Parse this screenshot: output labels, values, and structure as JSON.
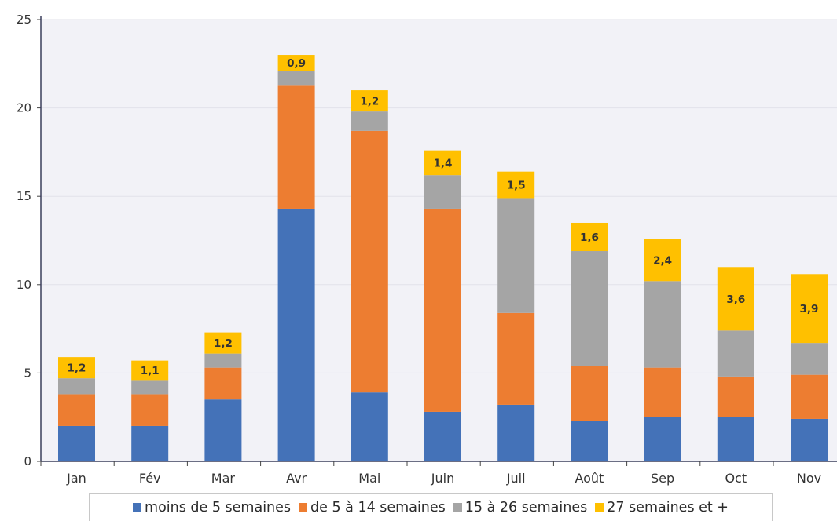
{
  "chart_data": {
    "type": "bar",
    "stacked": true,
    "categories": [
      "Jan",
      "Fév",
      "Mar",
      "Avr",
      "Mai",
      "Juin",
      "Juil",
      "Août",
      "Sep",
      "Oct",
      "Nov"
    ],
    "series": [
      {
        "name": "moins de 5 semaines",
        "color": "#4472b8",
        "values": [
          2.0,
          2.0,
          3.5,
          14.3,
          3.9,
          2.8,
          3.2,
          2.3,
          2.5,
          2.5,
          2.4
        ]
      },
      {
        "name": "de 5 à 14 semaines",
        "color": "#ed7d31",
        "values": [
          1.8,
          1.8,
          1.8,
          7.0,
          14.8,
          11.5,
          5.2,
          3.1,
          2.8,
          2.3,
          2.5
        ]
      },
      {
        "name": "15 à 26 semaines",
        "color": "#a5a5a5",
        "values": [
          0.9,
          0.8,
          0.8,
          0.8,
          1.1,
          1.9,
          6.5,
          6.5,
          4.9,
          2.6,
          1.8
        ]
      },
      {
        "name": "27 semaines et +",
        "color": "#ffc000",
        "values": [
          1.2,
          1.1,
          1.2,
          0.9,
          1.2,
          1.4,
          1.5,
          1.6,
          2.4,
          3.6,
          3.9
        ]
      }
    ],
    "data_labels": [
      "1,2",
      "1,1",
      "1,2",
      "0,9",
      "1,2",
      "1,4",
      "1,5",
      "1,6",
      "2,4",
      "3,6",
      "3,9"
    ],
    "y_ticks": [
      "0",
      "5",
      "10",
      "15",
      "20",
      "25"
    ],
    "ylim": [
      0,
      25
    ],
    "grid": true,
    "legend_position": "bottom"
  }
}
